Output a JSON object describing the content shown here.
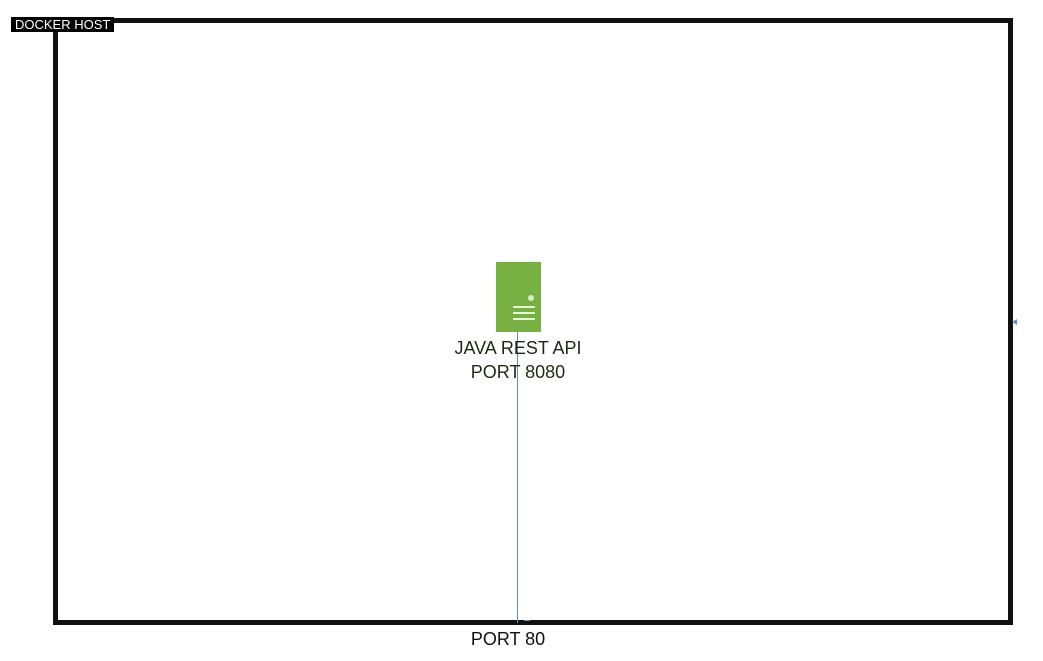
{
  "host": {
    "label": "DOCKER HOST"
  },
  "service": {
    "icon": "server-icon",
    "name": "JAVA REST API",
    "port": "PORT 8080",
    "color": "#76b041"
  },
  "external_port": {
    "label": "PORT 80"
  },
  "connector": {
    "color": "#5b8fc7"
  }
}
